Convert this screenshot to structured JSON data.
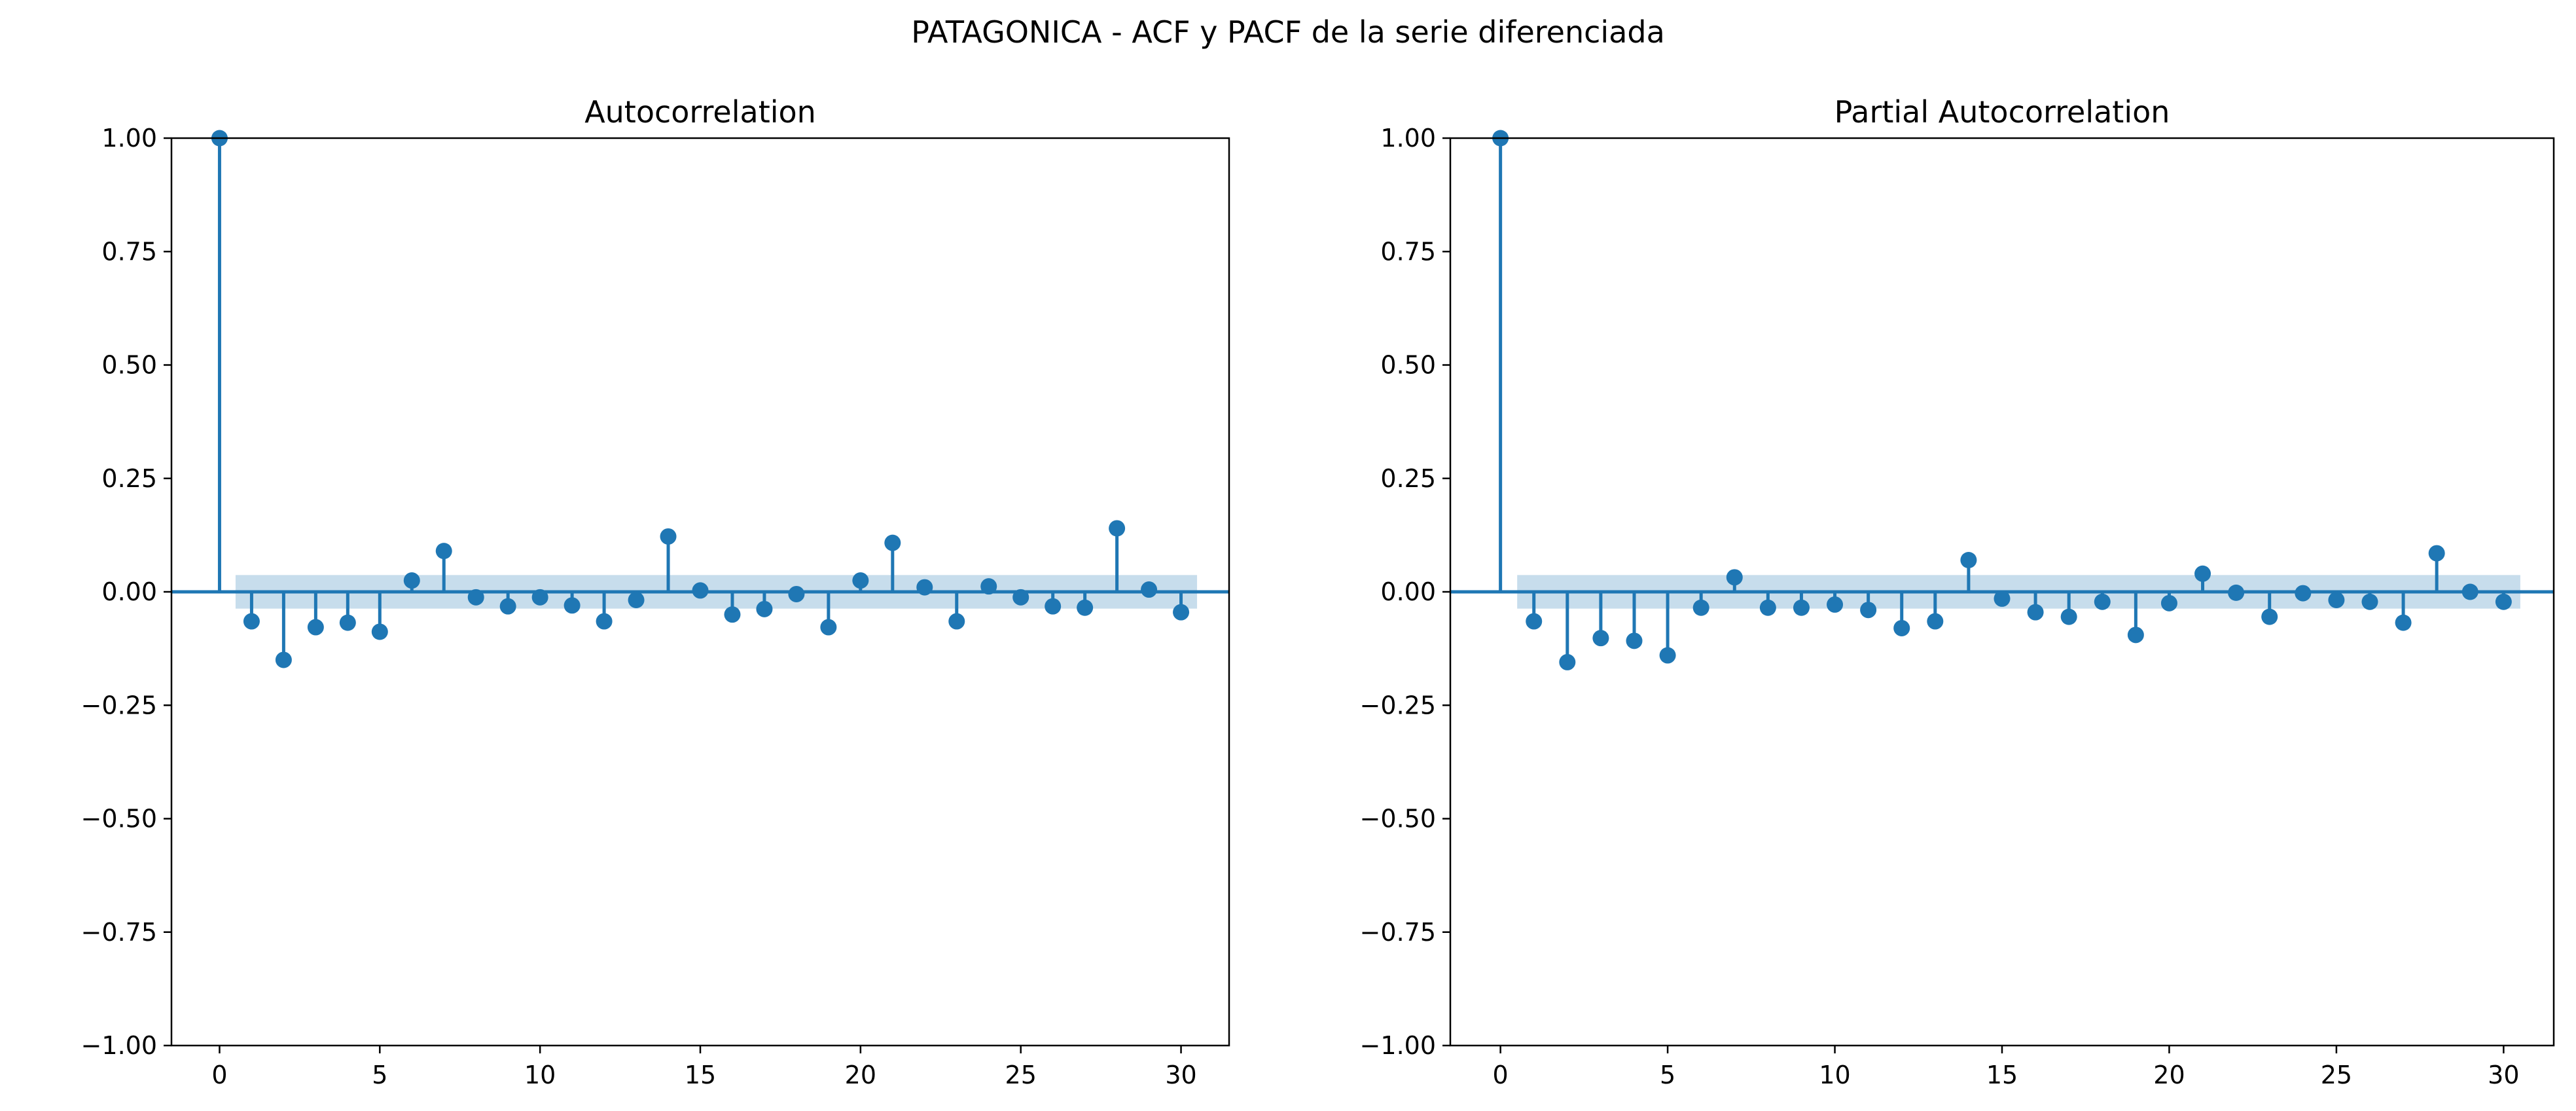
{
  "suptitle": "PATAGONICA - ACF y PACF de la serie diferenciada",
  "colors": {
    "stem": "#1f77b4",
    "conf_band": "#1f77b4",
    "axes": "#000000"
  },
  "chart_data": [
    {
      "type": "stem",
      "title": "Autocorrelation",
      "xlabel": "",
      "ylabel": "",
      "xlim": [
        -1.5,
        31.5
      ],
      "ylim": [
        -1.0,
        1.0
      ],
      "xticks": [
        0,
        5,
        10,
        15,
        20,
        25,
        30
      ],
      "xtick_labels": [
        "0",
        "5",
        "10",
        "15",
        "20",
        "25",
        "30"
      ],
      "yticks": [
        -1.0,
        -0.75,
        -0.5,
        -0.25,
        0.0,
        0.25,
        0.5,
        0.75,
        1.0
      ],
      "ytick_labels": [
        "−1.00",
        "−0.75",
        "−0.50",
        "−0.25",
        "0.00",
        "0.25",
        "0.50",
        "0.75",
        "1.00"
      ],
      "grid": false,
      "lags": [
        0,
        1,
        2,
        3,
        4,
        5,
        6,
        7,
        8,
        9,
        10,
        11,
        12,
        13,
        14,
        15,
        16,
        17,
        18,
        19,
        20,
        21,
        22,
        23,
        24,
        25,
        26,
        27,
        28,
        29,
        30
      ],
      "values": [
        1.0,
        -0.065,
        -0.15,
        -0.078,
        -0.068,
        -0.088,
        0.025,
        0.09,
        -0.012,
        -0.032,
        -0.012,
        -0.03,
        -0.065,
        -0.018,
        0.122,
        0.003,
        -0.05,
        -0.038,
        -0.005,
        -0.078,
        0.025,
        0.108,
        0.01,
        -0.065,
        0.012,
        -0.012,
        -0.032,
        -0.035,
        0.14,
        0.005,
        -0.045
      ],
      "confidence_band": {
        "x_start": 0.5,
        "x_end": 30.5,
        "lower": -0.037,
        "upper": 0.037
      }
    },
    {
      "type": "stem",
      "title": "Partial Autocorrelation",
      "xlabel": "",
      "ylabel": "",
      "xlim": [
        -1.5,
        31.5
      ],
      "ylim": [
        -1.0,
        1.0
      ],
      "xticks": [
        0,
        5,
        10,
        15,
        20,
        25,
        30
      ],
      "xtick_labels": [
        "0",
        "5",
        "10",
        "15",
        "20",
        "25",
        "30"
      ],
      "yticks": [
        -1.0,
        -0.75,
        -0.5,
        -0.25,
        0.0,
        0.25,
        0.5,
        0.75,
        1.0
      ],
      "ytick_labels": [
        "−1.00",
        "−0.75",
        "−0.50",
        "−0.25",
        "0.00",
        "0.25",
        "0.50",
        "0.75",
        "1.00"
      ],
      "grid": false,
      "lags": [
        0,
        1,
        2,
        3,
        4,
        5,
        6,
        7,
        8,
        9,
        10,
        11,
        12,
        13,
        14,
        15,
        16,
        17,
        18,
        19,
        20,
        21,
        22,
        23,
        24,
        25,
        26,
        27,
        28,
        29,
        30
      ],
      "values": [
        1.0,
        -0.065,
        -0.155,
        -0.102,
        -0.108,
        -0.14,
        -0.035,
        0.032,
        -0.035,
        -0.035,
        -0.028,
        -0.04,
        -0.08,
        -0.065,
        0.07,
        -0.015,
        -0.045,
        -0.055,
        -0.022,
        -0.095,
        -0.025,
        0.04,
        -0.002,
        -0.055,
        -0.003,
        -0.018,
        -0.022,
        -0.068,
        0.085,
        0.0,
        -0.022
      ],
      "confidence_band": {
        "x_start": 0.5,
        "x_end": 30.5,
        "lower": -0.037,
        "upper": 0.037
      }
    }
  ]
}
